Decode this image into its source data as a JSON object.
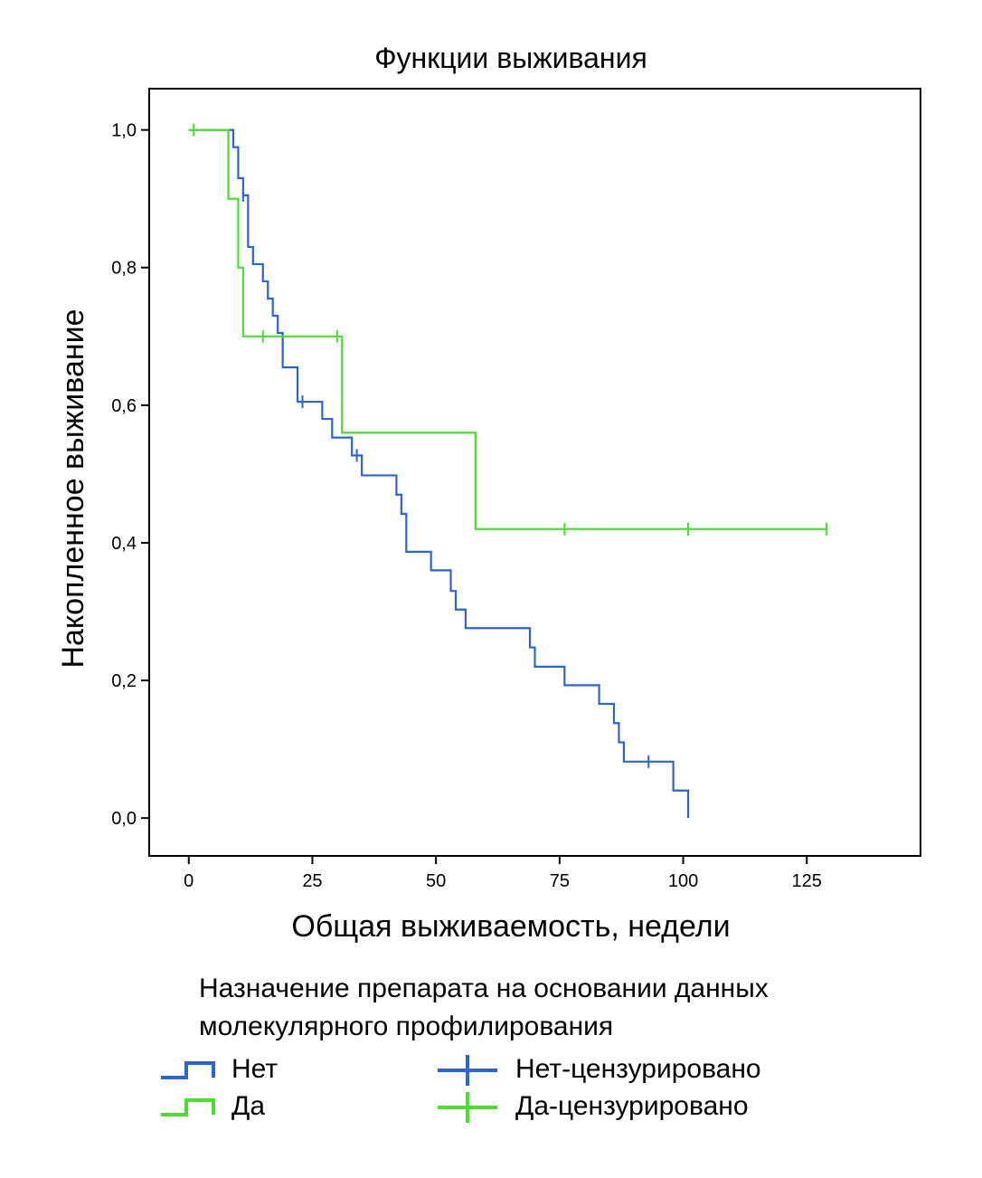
{
  "chart_data": {
    "type": "line",
    "subtype": "kaplan-meier",
    "title": "Функции выживания",
    "xlabel": "Общая выживаемость, недели",
    "ylabel": "Накопленное выживание",
    "xlim": [
      -8,
      148
    ],
    "ylim": [
      -0.055,
      1.06
    ],
    "x_ticks": [
      0,
      25,
      50,
      75,
      100,
      125
    ],
    "x_tick_labels": [
      "0",
      "25",
      "50",
      "75",
      "100",
      "125"
    ],
    "y_ticks": [
      0.0,
      0.2,
      0.4,
      0.6,
      0.8,
      1.0
    ],
    "y_tick_labels": [
      "0,0",
      "0,2",
      "0,4",
      "0,6",
      "0,8",
      "1,0"
    ],
    "legend_title": "Назначение препарата на основании данных молекулярного профилирования",
    "legend_title_lines": [
      "Назначение препарата на основании данных",
      "молекулярного профилирования"
    ],
    "legend_placement": "bottom",
    "series": [
      {
        "name": "Нет",
        "censored_label": "Нет-цензурировано",
        "color": "#2a64d8",
        "steps": [
          [
            0,
            1.0
          ],
          [
            9,
            0.975
          ],
          [
            10,
            0.93
          ],
          [
            11,
            0.905
          ],
          [
            12,
            0.83
          ],
          [
            13,
            0.805
          ],
          [
            15,
            0.78
          ],
          [
            16,
            0.755
          ],
          [
            17,
            0.73
          ],
          [
            18,
            0.705
          ],
          [
            19,
            0.655
          ],
          [
            22,
            0.605
          ],
          [
            27,
            0.58
          ],
          [
            29,
            0.553
          ],
          [
            33,
            0.527
          ],
          [
            35,
            0.498
          ],
          [
            42,
            0.47
          ],
          [
            43,
            0.442
          ],
          [
            44,
            0.387
          ],
          [
            49,
            0.36
          ],
          [
            53,
            0.33
          ],
          [
            54,
            0.303
          ],
          [
            56,
            0.276
          ],
          [
            69,
            0.248
          ],
          [
            70,
            0.22
          ],
          [
            76,
            0.193
          ],
          [
            83,
            0.166
          ],
          [
            86,
            0.138
          ],
          [
            87,
            0.11
          ],
          [
            88,
            0.082
          ],
          [
            98,
            0.04
          ],
          [
            101,
            0.0
          ]
        ],
        "end_x": 101,
        "censored": [
          [
            11,
            0.905
          ],
          [
            23,
            0.605
          ],
          [
            34,
            0.527
          ],
          [
            93,
            0.082
          ]
        ]
      },
      {
        "name": "Да",
        "censored_label": "Да-цензурировано",
        "color": "#48e02c",
        "steps": [
          [
            0,
            1.0
          ],
          [
            8,
            0.9
          ],
          [
            10,
            0.8
          ],
          [
            11,
            0.7
          ],
          [
            31,
            0.56
          ],
          [
            58,
            0.42
          ]
        ],
        "end_x": 129,
        "censored": [
          [
            1,
            1.0
          ],
          [
            15,
            0.7
          ],
          [
            30,
            0.7
          ],
          [
            76,
            0.42
          ],
          [
            101,
            0.42
          ],
          [
            129,
            0.42
          ]
        ]
      }
    ]
  },
  "legend": {
    "items": [
      {
        "label": "Нет",
        "kind": "step",
        "color": "#2a64d8"
      },
      {
        "label": "Да",
        "kind": "step",
        "color": "#48e02c"
      },
      {
        "label": "Нет-цензурировано",
        "kind": "cross",
        "color": "#2a64d8"
      },
      {
        "label": "Да-цензурировано",
        "kind": "cross",
        "color": "#48e02c"
      }
    ]
  }
}
